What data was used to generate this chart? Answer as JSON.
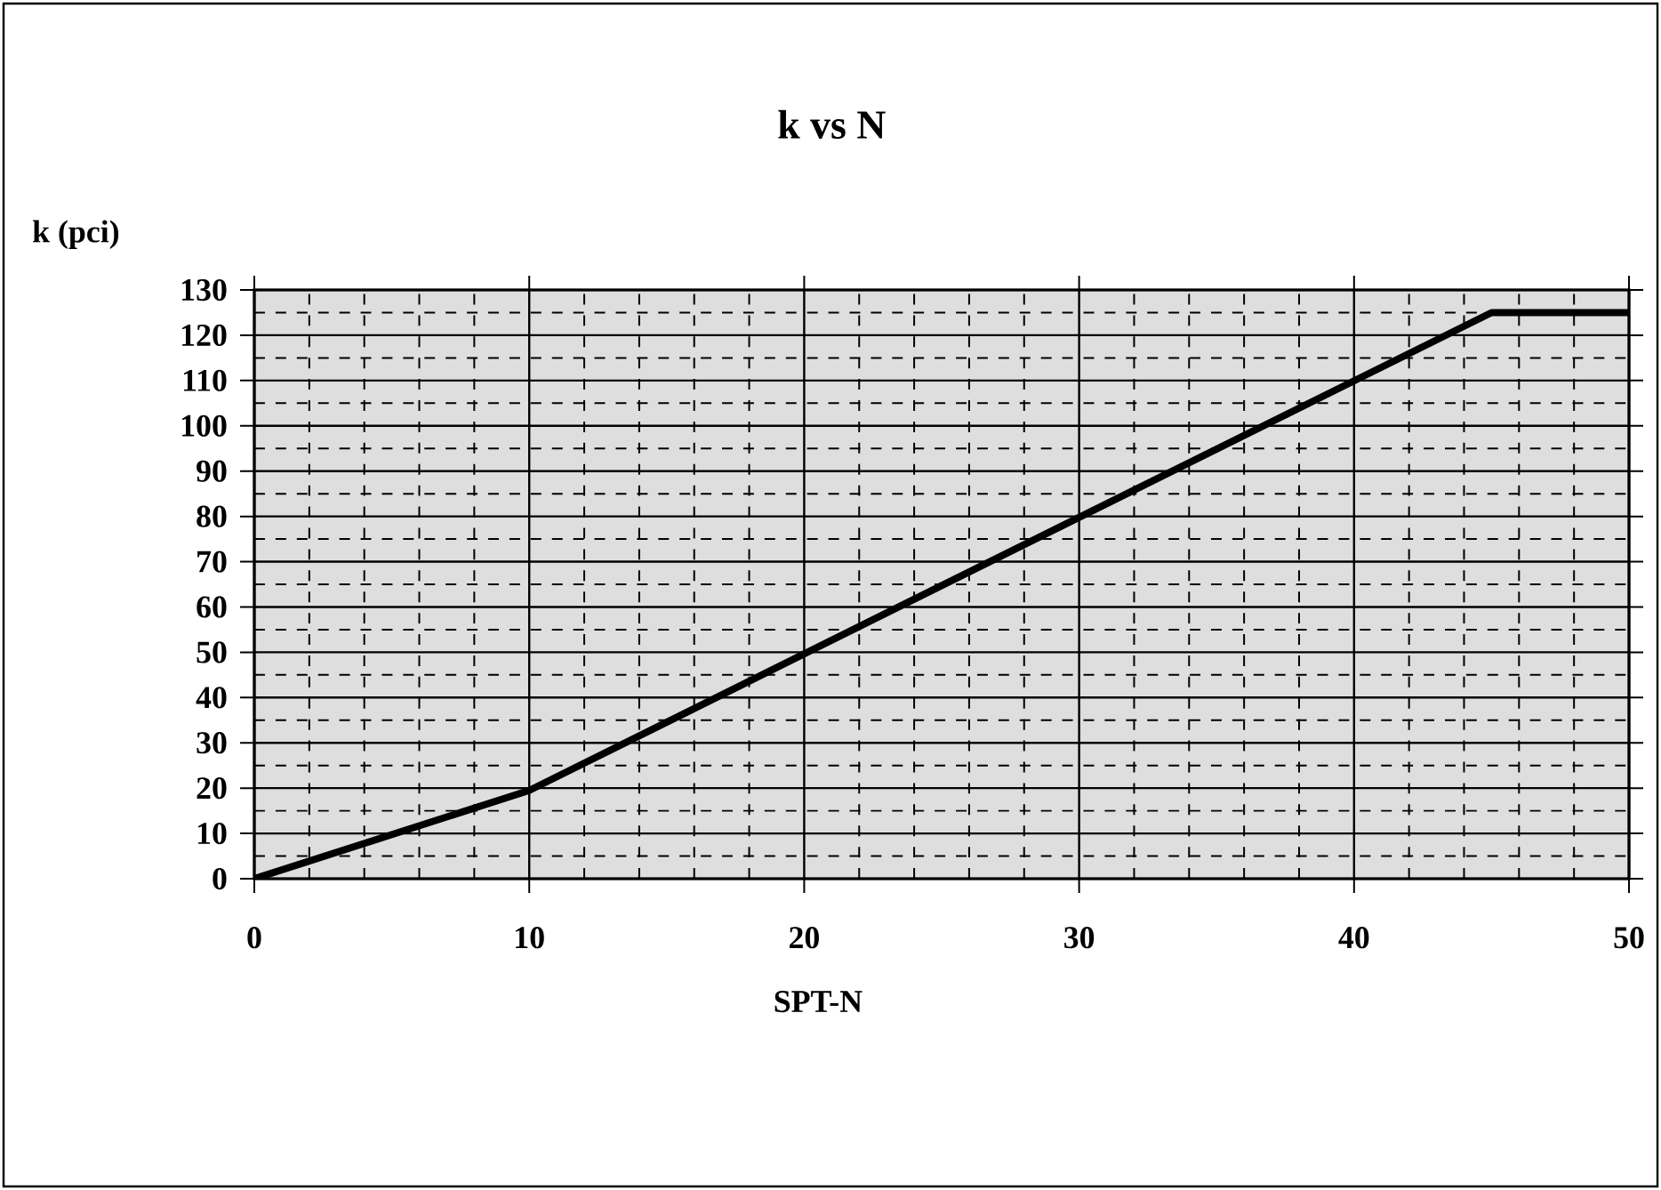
{
  "chart_data": {
    "type": "line",
    "title": "k vs N",
    "xlabel": "SPT-N",
    "ylabel": "k (pci)",
    "x": [
      0,
      10,
      45,
      50
    ],
    "series": [
      {
        "color": "#000000",
        "values": [
          0,
          19.5,
          125,
          125
        ]
      }
    ],
    "xlim": [
      0,
      50
    ],
    "ylim": [
      0,
      130
    ],
    "xticks": [
      0,
      10,
      20,
      30,
      40,
      50
    ],
    "yticks": [
      0,
      10,
      20,
      30,
      40,
      50,
      60,
      70,
      80,
      90,
      100,
      110,
      120,
      130
    ],
    "grid": true,
    "marker": "none",
    "line_style": "solid"
  }
}
